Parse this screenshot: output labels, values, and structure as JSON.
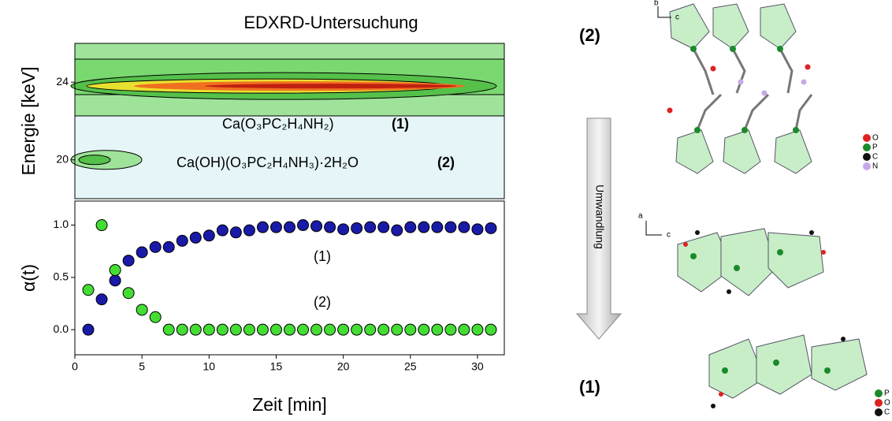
{
  "chart_data": [
    {
      "type": "contour",
      "title": "EDXRD-Untersuchung",
      "ylabel": "Energie [keV]",
      "xlim": [
        0,
        32
      ],
      "ylim": [
        18,
        26
      ],
      "yticks": [
        20,
        24
      ],
      "annotations": [
        "Ca(O₃PC₂H₄NH₂)",
        "(1)",
        "Ca(OH)(O₃PC₂H₄NH₃)·2H₂O",
        "(2)"
      ]
    },
    {
      "type": "scatter",
      "xlabel": "Zeit [min]",
      "ylabel": "α(t)",
      "xlim": [
        0,
        32
      ],
      "xticks": [
        0,
        5,
        10,
        15,
        20,
        25,
        30
      ],
      "ylim": [
        -0.24,
        1.23
      ],
      "yticks": [
        {
          "value": 0,
          "label": "0.0"
        },
        {
          "value": 0.5,
          "label": "0.5"
        },
        {
          "value": 1,
          "label": "1.0"
        }
      ],
      "x": [
        1,
        2,
        3,
        4,
        5,
        6,
        7,
        8,
        9,
        10,
        11,
        12,
        13,
        14,
        15,
        16,
        17,
        18,
        19,
        20,
        21,
        22,
        23,
        24,
        25,
        26,
        27,
        28,
        29,
        30,
        31
      ],
      "series": [
        {
          "name": "(1)",
          "color": "#1a1aa8",
          "values": [
            0,
            0.29,
            0.47,
            0.66,
            0.74,
            0.79,
            0.79,
            0.85,
            0.88,
            0.9,
            0.95,
            0.93,
            0.95,
            0.98,
            0.98,
            0.98,
            1.0,
            0.99,
            0.98,
            0.96,
            0.97,
            0.98,
            0.98,
            0.95,
            0.98,
            0.98,
            0.98,
            0.98,
            0.98,
            0.96,
            0.97
          ]
        },
        {
          "name": "(2)",
          "color": "#44dd33",
          "values": [
            0.38,
            1.0,
            0.57,
            0.35,
            0.19,
            0.12,
            0,
            0,
            0,
            0,
            0,
            0,
            0,
            0,
            0,
            0,
            0,
            0,
            0,
            0,
            0,
            0,
            0,
            0,
            0,
            0,
            0,
            0,
            0,
            0,
            0
          ]
        }
      ]
    }
  ],
  "diagram": {
    "top_label": "(2)",
    "bottom_label": "(1)",
    "arrow_label": "Umwandlung",
    "top_axes": [
      "b",
      "c"
    ],
    "mid_axes": [
      "a",
      "c"
    ],
    "top_legend": [
      "O",
      "P",
      "C",
      "N"
    ],
    "bottom_legend": [
      "P",
      "O",
      "C"
    ]
  }
}
